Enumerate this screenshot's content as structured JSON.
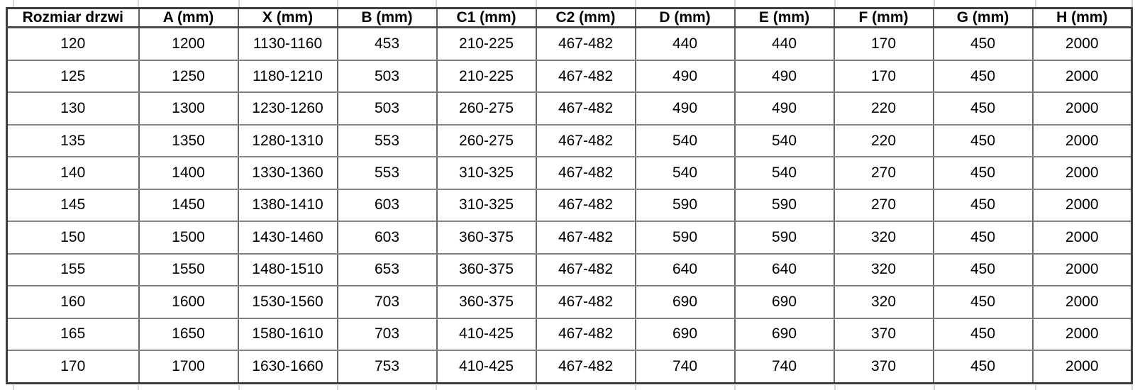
{
  "chart_data": {
    "type": "table",
    "title": "",
    "columns": [
      "Rozmiar drzwi",
      "A (mm)",
      "X (mm)",
      "B (mm)",
      "C1 (mm)",
      "C2 (mm)",
      "D (mm)",
      "E (mm)",
      "F (mm)",
      "G (mm)",
      "H (mm)"
    ],
    "rows": [
      [
        "120",
        "1200",
        "1130-1160",
        "453",
        "210-225",
        "467-482",
        "440",
        "440",
        "170",
        "450",
        "2000"
      ],
      [
        "125",
        "1250",
        "1180-1210",
        "503",
        "210-225",
        "467-482",
        "490",
        "490",
        "170",
        "450",
        "2000"
      ],
      [
        "130",
        "1300",
        "1230-1260",
        "503",
        "260-275",
        "467-482",
        "490",
        "490",
        "220",
        "450",
        "2000"
      ],
      [
        "135",
        "1350",
        "1280-1310",
        "553",
        "260-275",
        "467-482",
        "540",
        "540",
        "220",
        "450",
        "2000"
      ],
      [
        "140",
        "1400",
        "1330-1360",
        "553",
        "310-325",
        "467-482",
        "540",
        "540",
        "270",
        "450",
        "2000"
      ],
      [
        "145",
        "1450",
        "1380-1410",
        "603",
        "310-325",
        "467-482",
        "590",
        "590",
        "270",
        "450",
        "2000"
      ],
      [
        "150",
        "1500",
        "1430-1460",
        "603",
        "360-375",
        "467-482",
        "590",
        "590",
        "320",
        "450",
        "2000"
      ],
      [
        "155",
        "1550",
        "1480-1510",
        "653",
        "360-375",
        "467-482",
        "640",
        "640",
        "320",
        "450",
        "2000"
      ],
      [
        "160",
        "1600",
        "1530-1560",
        "703",
        "360-375",
        "467-482",
        "690",
        "690",
        "320",
        "450",
        "2000"
      ],
      [
        "165",
        "1650",
        "1580-1610",
        "703",
        "410-425",
        "467-482",
        "690",
        "690",
        "370",
        "450",
        "2000"
      ],
      [
        "170",
        "1700",
        "1630-1660",
        "753",
        "410-425",
        "467-482",
        "740",
        "740",
        "370",
        "450",
        "2000"
      ]
    ],
    "colors": {
      "text": "#000000",
      "background": "#ffffff",
      "border_outer": "#3e3e3e",
      "border_vertical": "#666666",
      "border_horizontal": "#828282",
      "sheet_gridline": "#d6d6d6"
    }
  }
}
